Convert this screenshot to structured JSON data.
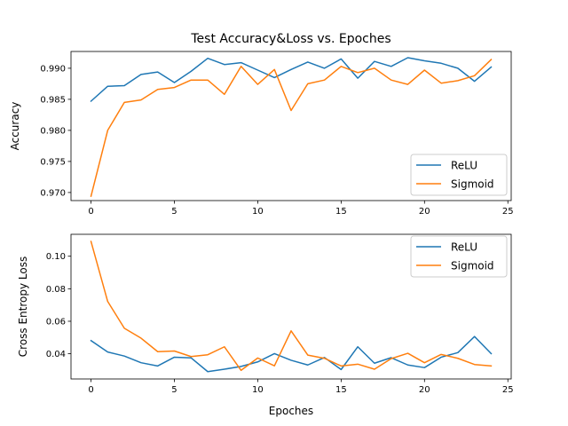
{
  "chart_data": [
    {
      "type": "line",
      "title": "Test Accuracy&Loss vs. Epoches",
      "xlabel": "",
      "ylabel": "Accuracy",
      "xlim": [
        -1.2,
        25.2
      ],
      "ylim": [
        0.9687,
        0.9927
      ],
      "xticks": [
        "0",
        "5",
        "10",
        "15",
        "20",
        "25"
      ],
      "xtick_values": [
        0,
        5,
        10,
        15,
        20,
        25
      ],
      "yticks": [
        "0.970",
        "0.975",
        "0.980",
        "0.985",
        "0.990"
      ],
      "ytick_values": [
        0.97,
        0.975,
        0.98,
        0.985,
        0.99
      ],
      "legend_position": "lower-right",
      "grid": false,
      "x": [
        0,
        1,
        2,
        3,
        4,
        5,
        6,
        7,
        8,
        9,
        10,
        11,
        12,
        13,
        14,
        15,
        16,
        17,
        18,
        19,
        20,
        21,
        22,
        23,
        24
      ],
      "series": [
        {
          "name": "ReLU",
          "color": "#1f77b4",
          "values": [
            0.9847,
            0.9871,
            0.9872,
            0.989,
            0.9894,
            0.9877,
            0.9895,
            0.9916,
            0.9906,
            0.9909,
            0.9897,
            0.9885,
            0.9898,
            0.991,
            0.99,
            0.9915,
            0.9884,
            0.9911,
            0.9903,
            0.9917,
            0.9912,
            0.9908,
            0.99,
            0.9879,
            0.9902
          ]
        },
        {
          "name": "Sigmoid",
          "color": "#ff7f0e",
          "values": [
            0.9694,
            0.98,
            0.9845,
            0.9849,
            0.9866,
            0.9869,
            0.9881,
            0.9881,
            0.9858,
            0.9903,
            0.9874,
            0.9898,
            0.9832,
            0.9875,
            0.9881,
            0.9903,
            0.9893,
            0.99,
            0.9881,
            0.9874,
            0.9897,
            0.9876,
            0.988,
            0.9888,
            0.9914
          ]
        }
      ]
    },
    {
      "type": "line",
      "title": "",
      "xlabel": "Epoches",
      "ylabel": "Cross Entropy Loss",
      "xlim": [
        -1.2,
        25.2
      ],
      "ylim": [
        0.0245,
        0.1135
      ],
      "xticks": [
        "0",
        "5",
        "10",
        "15",
        "20",
        "25"
      ],
      "xtick_values": [
        0,
        5,
        10,
        15,
        20,
        25
      ],
      "yticks": [
        "0.04",
        "0.06",
        "0.08",
        "0.10"
      ],
      "ytick_values": [
        0.04,
        0.06,
        0.08,
        0.1
      ],
      "legend_position": "upper-right",
      "grid": false,
      "x": [
        0,
        1,
        2,
        3,
        4,
        5,
        6,
        7,
        8,
        9,
        10,
        11,
        12,
        13,
        14,
        15,
        16,
        17,
        18,
        19,
        20,
        21,
        22,
        23,
        24
      ],
      "series": [
        {
          "name": "ReLU",
          "color": "#1f77b4",
          "values": [
            0.0481,
            0.0411,
            0.0386,
            0.0345,
            0.0325,
            0.0379,
            0.0375,
            0.029,
            0.0305,
            0.0322,
            0.035,
            0.0401,
            0.036,
            0.0331,
            0.0377,
            0.0303,
            0.0443,
            0.0342,
            0.0376,
            0.0331,
            0.0315,
            0.0379,
            0.0407,
            0.0506,
            0.0401
          ]
        },
        {
          "name": "Sigmoid",
          "color": "#ff7f0e",
          "values": [
            0.1091,
            0.0722,
            0.0557,
            0.0496,
            0.0413,
            0.0417,
            0.0383,
            0.0394,
            0.0443,
            0.0298,
            0.0374,
            0.0326,
            0.0541,
            0.0392,
            0.0372,
            0.0325,
            0.0336,
            0.0305,
            0.037,
            0.0403,
            0.0345,
            0.0396,
            0.0372,
            0.0334,
            0.0325
          ]
        }
      ]
    }
  ]
}
